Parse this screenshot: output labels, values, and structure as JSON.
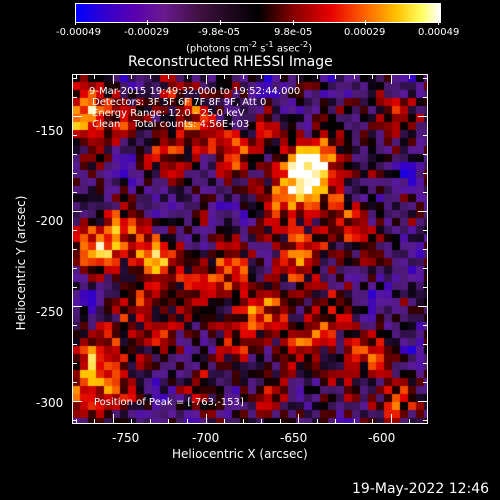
{
  "colorbar": {
    "ticks": [
      "-0.00049",
      "-0.00029",
      "-9.8e-05",
      "9.8e-05",
      "0.00029",
      "0.00049"
    ],
    "units_html": "(photons cm<sup>-2</sup> s<sup>-1</sup> asec<sup>-2</sup>)"
  },
  "plot": {
    "title": "Reconstructed RHESSI Image",
    "xlabel": "Heliocentric X (arcsec)",
    "ylabel": "Heliocentric Y (arcsec)",
    "xticks": [
      "-750",
      "-700",
      "-650",
      "-600"
    ],
    "yticks": [
      "-150",
      "-200",
      "-250",
      "-300"
    ],
    "info_lines": [
      "9-Mar-2015 19:49:32.000 to 19:52:44.000",
      "Detectors: 3F 5F 6F 7F 8F 9F, Att 0",
      "Energy Range: 12.0 - 25.0 keV",
      "Clean    Total counts: 4.56E+03"
    ],
    "peak_text": "Position of Peak = [-763,-153]"
  },
  "footer": {
    "date": "19-May-2022 12:46"
  },
  "chart_data": {
    "type": "heatmap",
    "title": "Reconstructed RHESSI Image",
    "xlabel": "Heliocentric X (arcsec)",
    "ylabel": "Heliocentric Y (arcsec)",
    "xlim": [
      -772,
      -580
    ],
    "ylim": [
      -312,
      -128
    ],
    "colorbar_range": [
      -0.00049,
      0.00049
    ],
    "peak_position": [
      -763,
      -153
    ],
    "colormap": [
      "#0000ff",
      "#3a00c0",
      "#5a1a9a",
      "#4a1a70",
      "#000000",
      "#8a0000",
      "#e00000",
      "#ff7a00",
      "#ffd000",
      "#ffffff"
    ],
    "sources": [
      {
        "x": -764,
        "y": -150,
        "value": 1.0
      },
      {
        "x": -640,
        "y": -175,
        "value": 0.95
      },
      {
        "x": -655,
        "y": -190,
        "value": 0.7
      },
      {
        "x": -755,
        "y": -215,
        "value": 0.75
      },
      {
        "x": -730,
        "y": -225,
        "value": 0.6
      },
      {
        "x": -685,
        "y": -165,
        "value": 0.55
      },
      {
        "x": -720,
        "y": -165,
        "value": 0.55
      },
      {
        "x": -690,
        "y": -232,
        "value": 0.55
      },
      {
        "x": -650,
        "y": -225,
        "value": 0.6
      },
      {
        "x": -620,
        "y": -210,
        "value": 0.5
      },
      {
        "x": -675,
        "y": -258,
        "value": 0.6
      },
      {
        "x": -640,
        "y": -262,
        "value": 0.55
      },
      {
        "x": -720,
        "y": -250,
        "value": 0.45
      },
      {
        "x": -760,
        "y": -290,
        "value": 0.85
      },
      {
        "x": -745,
        "y": -270,
        "value": 0.5
      },
      {
        "x": -600,
        "y": -150,
        "value": 0.4
      },
      {
        "x": -600,
        "y": -300,
        "value": 0.45
      },
      {
        "x": -615,
        "y": -275,
        "value": 0.35
      },
      {
        "x": -700,
        "y": -290,
        "value": 0.3
      },
      {
        "x": -660,
        "y": -295,
        "value": 0.35
      },
      {
        "x": -710,
        "y": -140,
        "value": 0.4
      }
    ]
  }
}
